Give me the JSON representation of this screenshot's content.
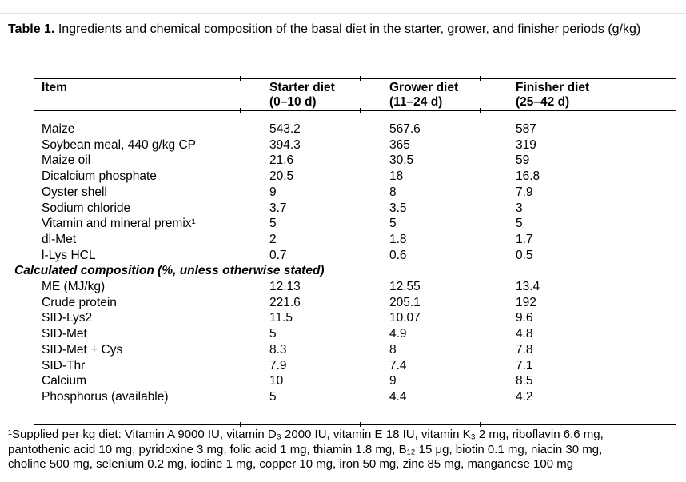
{
  "page": {
    "background": "#ffffff",
    "text_color": "#000000",
    "rule_color": "#000000"
  },
  "caption": {
    "label": "Table 1.",
    "text": " Ingredients and chemical composition of the basal diet in the starter, grower, and finisher periods (g/kg)"
  },
  "table": {
    "header": [
      {
        "line1": "Item",
        "line2": ""
      },
      {
        "line1": "Starter diet",
        "line2": "(0–10 d)"
      },
      {
        "line1": "Grower diet",
        "line2": "(11–24 d)"
      },
      {
        "line1": "Finisher diet",
        "line2": "(25–42 d)"
      }
    ],
    "rows": [
      {
        "type": "item",
        "item": "Maize",
        "values": [
          "543.2",
          "567.6",
          "587"
        ]
      },
      {
        "type": "item",
        "item": "Soybean meal, 440 g/kg CP",
        "values": [
          "394.3",
          "365",
          "319"
        ]
      },
      {
        "type": "item",
        "item": "Maize oil",
        "values": [
          "21.6",
          "30.5",
          "59"
        ]
      },
      {
        "type": "item",
        "item": "Dicalcium phosphate",
        "values": [
          "20.5",
          "18",
          "16.8"
        ]
      },
      {
        "type": "item",
        "item": "Oyster shell",
        "values": [
          "9",
          "8",
          "7.9"
        ]
      },
      {
        "type": "item",
        "item": "Sodium chloride",
        "values": [
          "3.7",
          "3.5",
          "3"
        ]
      },
      {
        "type": "item",
        "item": "Vitamin and mineral premix¹",
        "values": [
          "5",
          "5",
          "5"
        ]
      },
      {
        "type": "item",
        "item": "dl-Met",
        "values": [
          "2",
          "1.8",
          "1.7"
        ]
      },
      {
        "type": "item",
        "item": "l-Lys HCL",
        "values": [
          "0.7",
          "0.6",
          "0.5"
        ]
      },
      {
        "type": "section",
        "item": "Calculated composition (%, unless otherwise stated)"
      },
      {
        "type": "item",
        "item": "ME (MJ/kg)",
        "values": [
          "12.13",
          "12.55",
          "13.4"
        ]
      },
      {
        "type": "item",
        "item": "Crude protein",
        "values": [
          "221.6",
          "205.1",
          "192"
        ]
      },
      {
        "type": "item",
        "item": "SID-Lys2",
        "values": [
          "11.5",
          "10.07",
          "9.6"
        ]
      },
      {
        "type": "item",
        "item": "SID-Met",
        "values": [
          "5",
          "4.9",
          "4.8"
        ]
      },
      {
        "type": "item",
        "item": "SID-Met + Cys",
        "values": [
          "8.3",
          "8",
          "7.8"
        ]
      },
      {
        "type": "item",
        "item": "SID-Thr",
        "values": [
          "7.9",
          "7.4",
          "7.1"
        ]
      },
      {
        "type": "item",
        "item": "Calcium",
        "values": [
          "10",
          "9",
          "8.5"
        ]
      },
      {
        "type": "item",
        "item": "Phosphorus (available)",
        "values": [
          "5",
          "4.4",
          "4.2"
        ]
      }
    ]
  },
  "footnote": {
    "lines": [
      "¹Supplied per kg diet: Vitamin A 9000 IU, vitamin D₃ 2000 IU, vitamin E 18 IU, vitamin K₃ 2 mg, riboflavin 6.6 mg,",
      "pantothenic acid 10 mg, pyridoxine 3 mg, folic acid 1 mg, thiamin 1.8 mg, B₁₂ 15 μg, biotin 0.1 mg, niacin 30 mg,",
      "choline 500 mg, selenium 0.2 mg, iodine 1 mg, copper 10 mg, iron 50 mg, zinc 85 mg, manganese 100 mg"
    ]
  }
}
